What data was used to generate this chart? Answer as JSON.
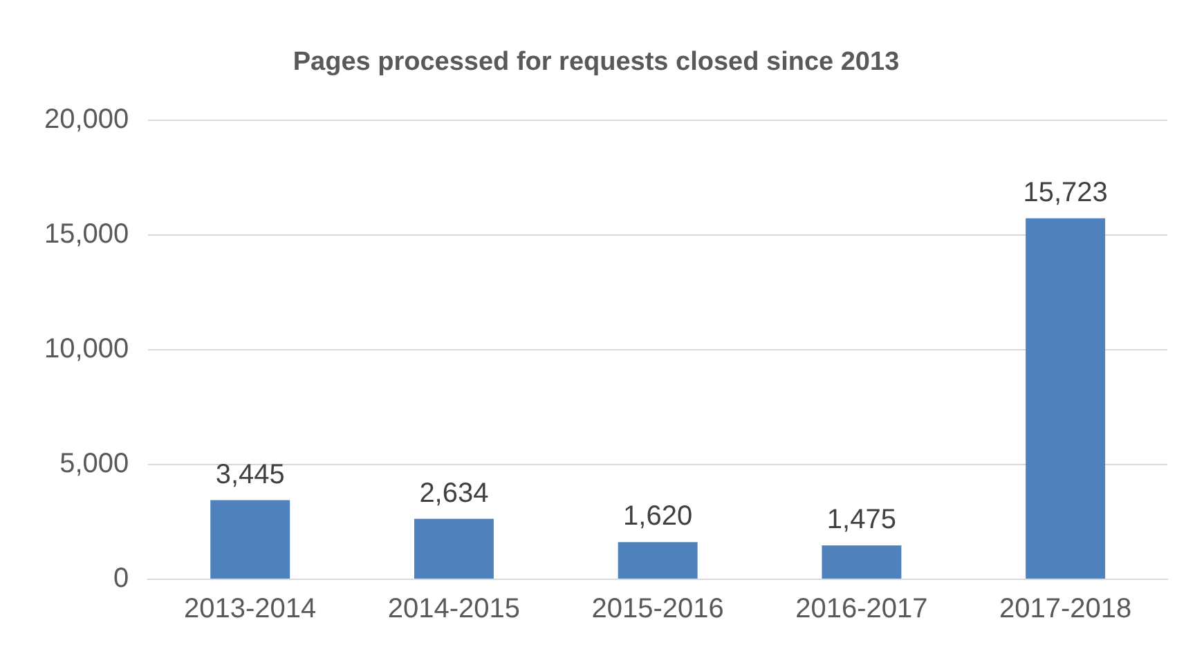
{
  "chart_data": {
    "type": "bar",
    "title": "Pages processed for requests closed since 2013",
    "categories": [
      "2013-2014",
      "2014-2015",
      "2015-2016",
      "2016-2017",
      "2017-2018"
    ],
    "values": [
      3445,
      2634,
      1620,
      1475,
      15723
    ],
    "color": "#4f81bd",
    "ylim": [
      0,
      20000
    ],
    "yticks": [
      0,
      {
        "value": 5000,
        "label": "5,000"
      },
      {
        "value": 10000,
        "label": "10,000"
      },
      {
        "value": 15000,
        "label": "15,000"
      },
      {
        "value": 20000,
        "label": "20,000"
      }
    ],
    "value_labels": [
      "3,445",
      "2,634",
      "1,620",
      "1,475",
      "15,723"
    ],
    "grid": "y"
  }
}
